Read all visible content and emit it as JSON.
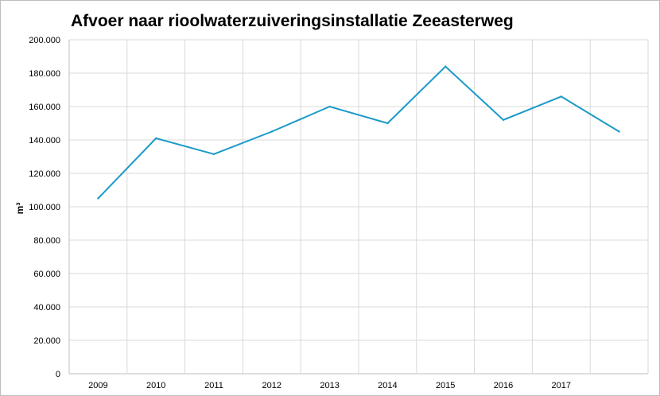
{
  "chart_data": {
    "type": "line",
    "title": "Afvoer naar rioolwaterzuiveringsinstallatie Zeeasterweg",
    "xlabel": "",
    "ylabel": "m³",
    "categories": [
      "2009",
      "2010",
      "2011",
      "2012",
      "2013",
      "2014",
      "2015",
      "2016",
      "2017",
      ""
    ],
    "series": [
      {
        "values": [
          105000,
          141000,
          131500,
          145000,
          160000,
          150000,
          184000,
          152000,
          166000,
          145000
        ]
      }
    ],
    "ylim": [
      0,
      200000
    ],
    "yticks": [
      "0",
      "20.000",
      "40.000",
      "60.000",
      "80.000",
      "100.000",
      "120.000",
      "140.000",
      "160.000",
      "180.000",
      "200.000"
    ],
    "grid": true,
    "legend": "none",
    "colors": {
      "line": "#1b9ac9",
      "grid": "#d9d9d9",
      "axis": "#bfbfbf"
    }
  }
}
